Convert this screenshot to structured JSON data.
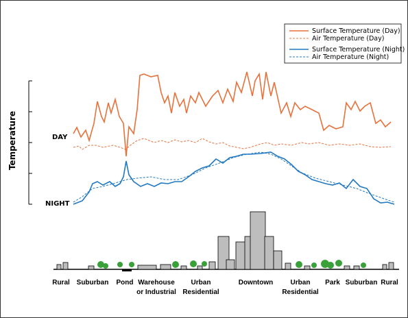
{
  "axis_label": "Temperature",
  "row_labels": [
    "DAY",
    "NIGHT"
  ],
  "legend": [
    "Surface Temperature (Day)",
    "Air Temperature  (Day)",
    "Surface Temperature (Night)",
    "Air Temperature (Night)"
  ],
  "zones": [
    [
      "Rural"
    ],
    [
      "Suburban"
    ],
    [
      "Pond"
    ],
    [
      "Warehouse",
      "or Industrial"
    ],
    [
      "Urban",
      "Residential"
    ],
    [
      "Downtown"
    ],
    [
      "Urban",
      "Residential"
    ],
    [
      "Park"
    ],
    [
      "Suburban"
    ],
    [
      "Rural"
    ]
  ]
}
